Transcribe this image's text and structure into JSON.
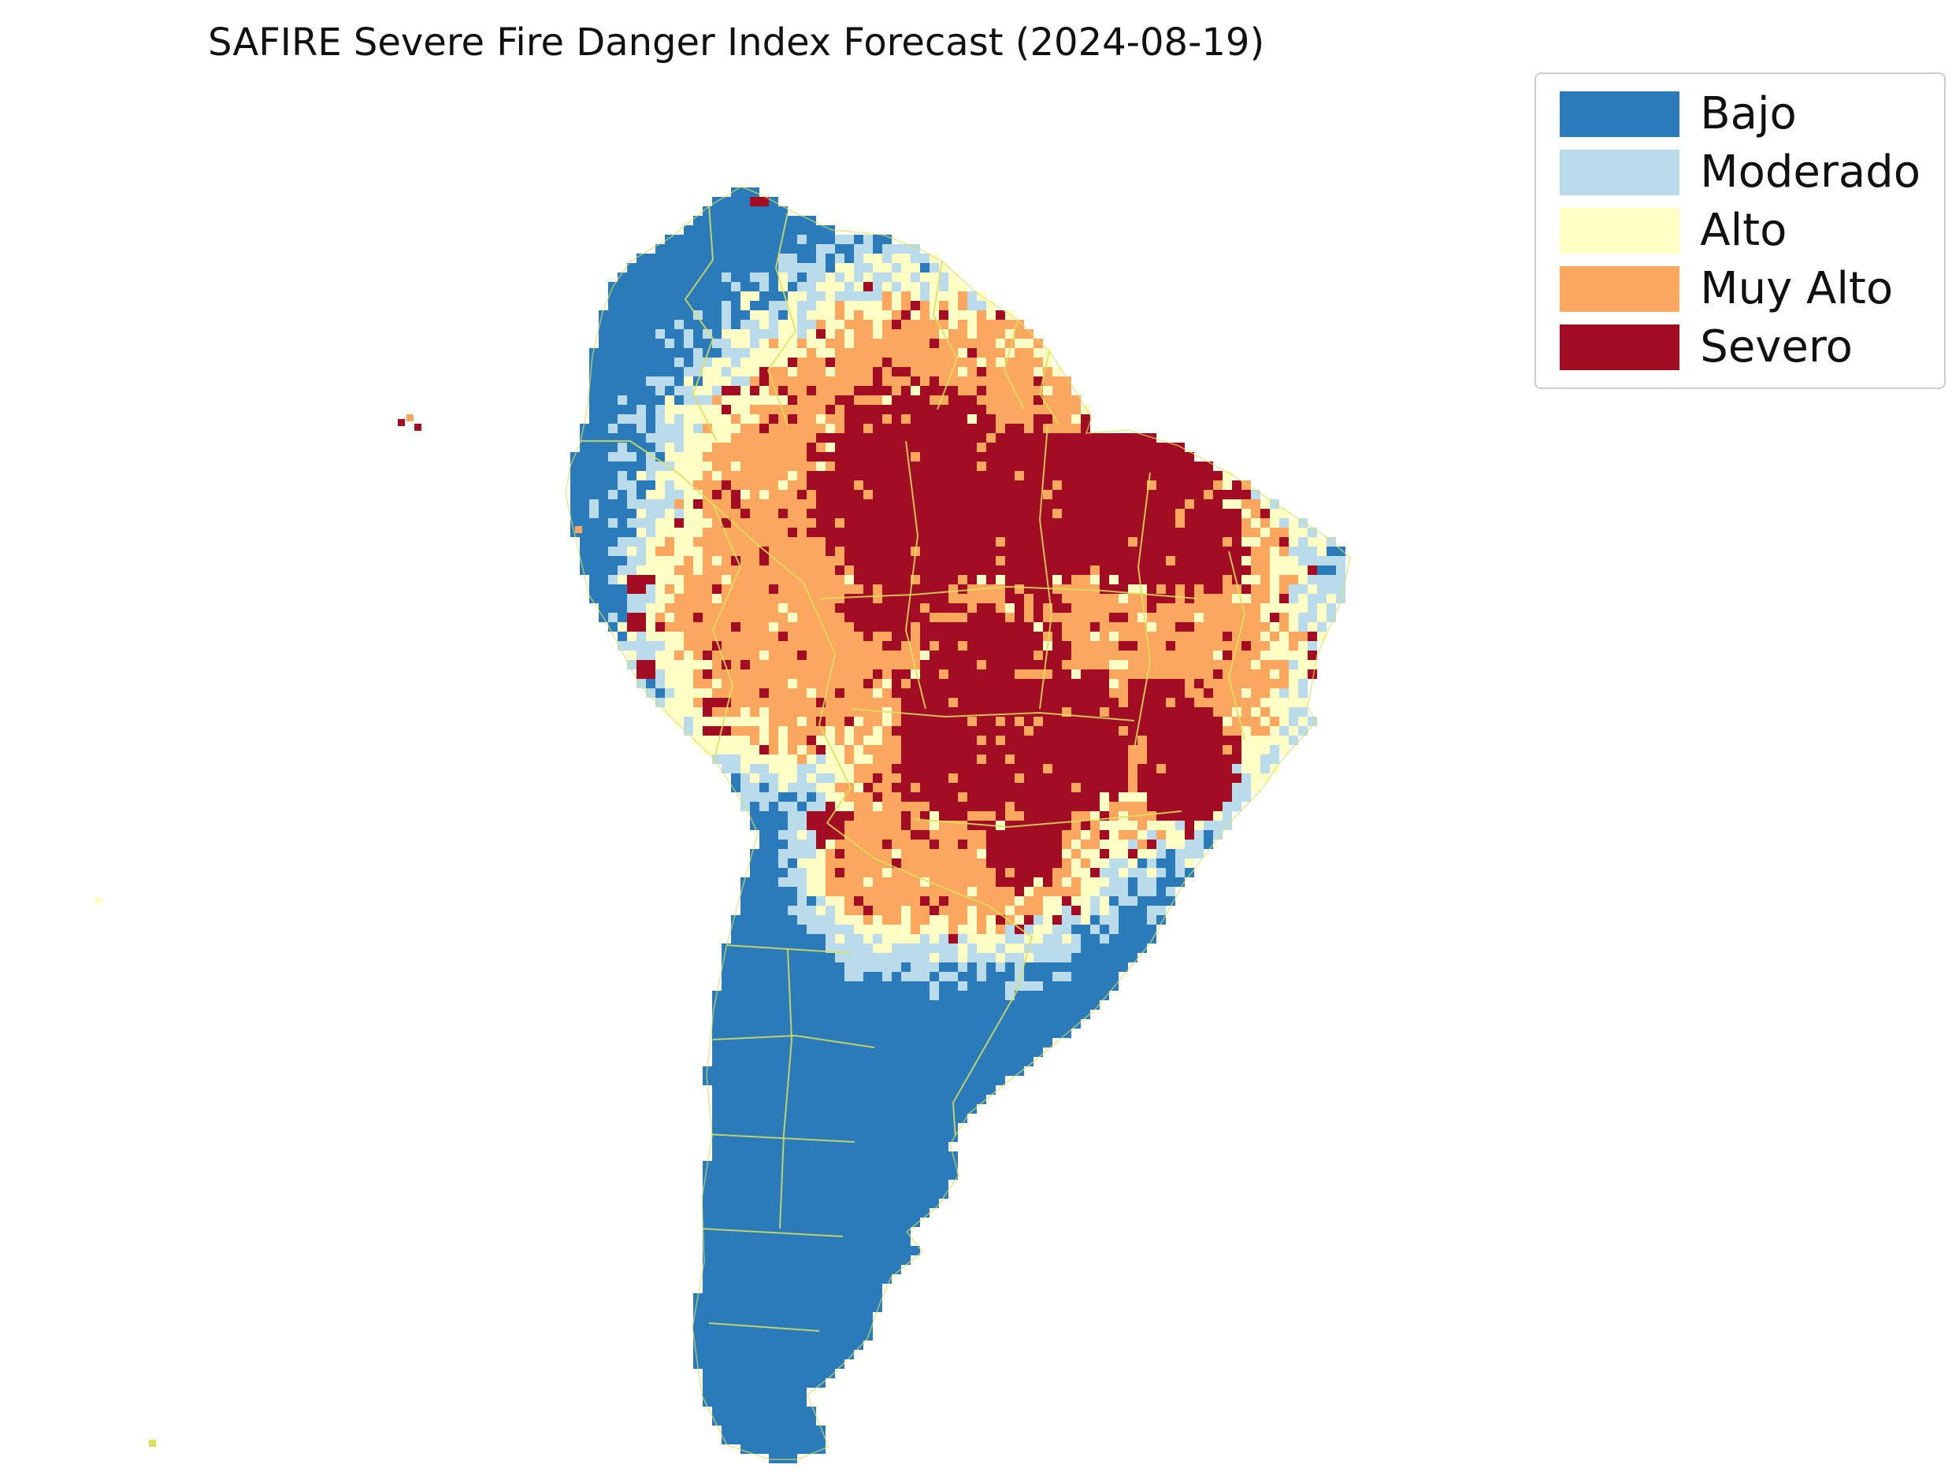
{
  "title": "SAFIRE Severe Fire Danger Index Forecast (2024-08-19)",
  "legend": {
    "items": [
      {
        "id": "bajo",
        "label": "Bajo",
        "color": "#2b7bba"
      },
      {
        "id": "moderado",
        "label": "Moderado",
        "color": "#b9dbea"
      },
      {
        "id": "alto",
        "label": "Alto",
        "color": "#ffffc5"
      },
      {
        "id": "muy-alto",
        "label": "Muy Alto",
        "color": "#fba75f"
      },
      {
        "id": "severo",
        "label": "Severo",
        "color": "#a30d24"
      }
    ]
  },
  "map": {
    "border_color": "#d9e15c",
    "background": "#ffffff"
  }
}
